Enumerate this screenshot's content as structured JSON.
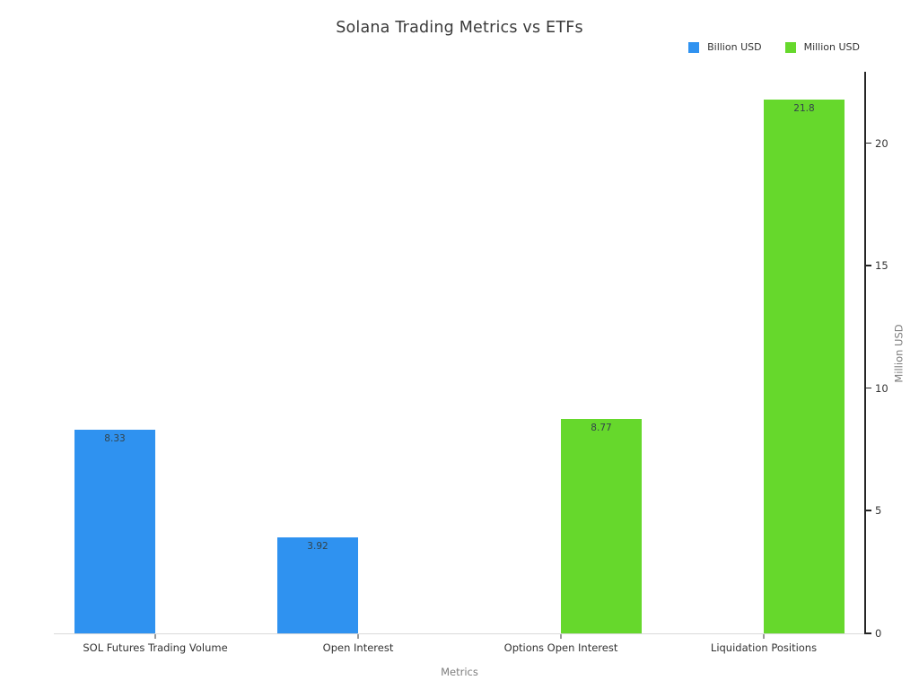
{
  "title": "Solana Trading Metrics vs ETFs",
  "legend": [
    {
      "label": "Billion USD",
      "color": "#2F92F0"
    },
    {
      "label": "Million USD",
      "color": "#66D82C"
    }
  ],
  "xlabel": "Metrics",
  "ylabel": "Million USD",
  "chart_data": {
    "type": "bar",
    "title": "Solana Trading Metrics vs ETFs",
    "categories": [
      "SOL Futures Trading Volume",
      "Open Interest",
      "Options Open Interest",
      "Liquidation Positions"
    ],
    "series": [
      {
        "name": "Billion USD",
        "color": "#2F92F0",
        "slot": "left",
        "values": [
          8.33,
          3.92,
          null,
          null
        ]
      },
      {
        "name": "Million USD",
        "color": "#66D82C",
        "slot": "right",
        "values": [
          null,
          null,
          8.77,
          21.8
        ]
      }
    ],
    "value_labels": [
      "8.33",
      "3.92",
      "8.77",
      "21.8"
    ],
    "xlabel": "Metrics",
    "ylabel": "Million USD",
    "yticks": [
      0,
      5,
      10,
      15,
      20
    ],
    "ylim": [
      0,
      22.85
    ],
    "grid": false,
    "legend_position": "top-right",
    "axes": {
      "y_axis_side": "right",
      "bottom_line_color": "#d9d9d9",
      "right_line_color": "#262626"
    }
  }
}
